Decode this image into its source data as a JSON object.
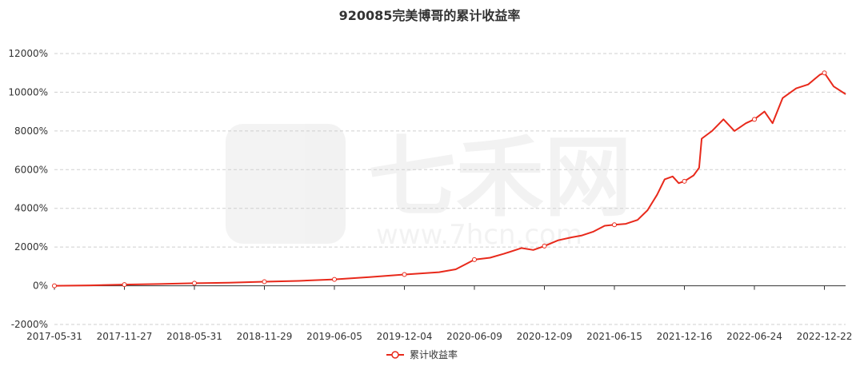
{
  "chart_data": {
    "type": "line",
    "title": "920085完美博哥的累计收益率",
    "xlabel": "",
    "ylabel": "",
    "ylim": [
      -2000,
      12000
    ],
    "y_ticks": [
      -2000,
      0,
      2000,
      4000,
      6000,
      8000,
      10000,
      12000
    ],
    "y_tick_labels": [
      "-2000%",
      "0%",
      "2000%",
      "4000%",
      "6000%",
      "8000%",
      "10000%",
      "12000%"
    ],
    "x_tick_labels": [
      "2017-05-31",
      "2017-11-27",
      "2018-05-31",
      "2018-11-29",
      "2019-06-05",
      "2019-12-04",
      "2020-06-09",
      "2020-12-09",
      "2021-06-15",
      "2021-12-16",
      "2022-06-24",
      "2022-12-22"
    ],
    "grid": true,
    "legend_position": "bottom-center",
    "series": [
      {
        "name": "累计收益率",
        "color": "#e8291b",
        "points": [
          [
            "2017-05-31",
            0
          ],
          [
            "2017-08-29",
            20
          ],
          [
            "2017-11-27",
            60
          ],
          [
            "2018-02-27",
            90
          ],
          [
            "2018-05-31",
            130
          ],
          [
            "2018-08-29",
            160
          ],
          [
            "2018-11-29",
            210
          ],
          [
            "2019-03-01",
            250
          ],
          [
            "2019-06-05",
            330
          ],
          [
            "2019-09-04",
            450
          ],
          [
            "2019-12-04",
            580
          ],
          [
            "2020-03-06",
            700
          ],
          [
            "2020-04-20",
            850
          ],
          [
            "2020-05-20",
            1150
          ],
          [
            "2020-06-09",
            1350
          ],
          [
            "2020-07-20",
            1450
          ],
          [
            "2020-08-25",
            1650
          ],
          [
            "2020-10-10",
            1950
          ],
          [
            "2020-11-10",
            1850
          ],
          [
            "2020-12-09",
            2050
          ],
          [
            "2021-01-15",
            2350
          ],
          [
            "2021-02-20",
            2500
          ],
          [
            "2021-03-20",
            2600
          ],
          [
            "2021-04-20",
            2800
          ],
          [
            "2021-05-20",
            3100
          ],
          [
            "2021-06-15",
            3150
          ],
          [
            "2021-07-15",
            3200
          ],
          [
            "2021-08-15",
            3400
          ],
          [
            "2021-09-10",
            3900
          ],
          [
            "2021-10-05",
            4700
          ],
          [
            "2021-10-25",
            5500
          ],
          [
            "2021-11-15",
            5650
          ],
          [
            "2021-12-01",
            5300
          ],
          [
            "2021-12-16",
            5400
          ],
          [
            "2022-01-10",
            5700
          ],
          [
            "2022-01-25",
            6100
          ],
          [
            "2022-02-01",
            7600
          ],
          [
            "2022-03-01",
            8000
          ],
          [
            "2022-04-01",
            8600
          ],
          [
            "2022-05-01",
            8000
          ],
          [
            "2022-06-01",
            8400
          ],
          [
            "2022-06-24",
            8600
          ],
          [
            "2022-07-20",
            9000
          ],
          [
            "2022-08-10",
            8400
          ],
          [
            "2022-09-05",
            9700
          ],
          [
            "2022-10-10",
            10200
          ],
          [
            "2022-11-10",
            10400
          ],
          [
            "2022-12-10",
            10900
          ],
          [
            "2022-12-22",
            11000
          ],
          [
            "2023-01-15",
            10300
          ],
          [
            "2023-02-15",
            9900
          ]
        ]
      }
    ]
  }
}
